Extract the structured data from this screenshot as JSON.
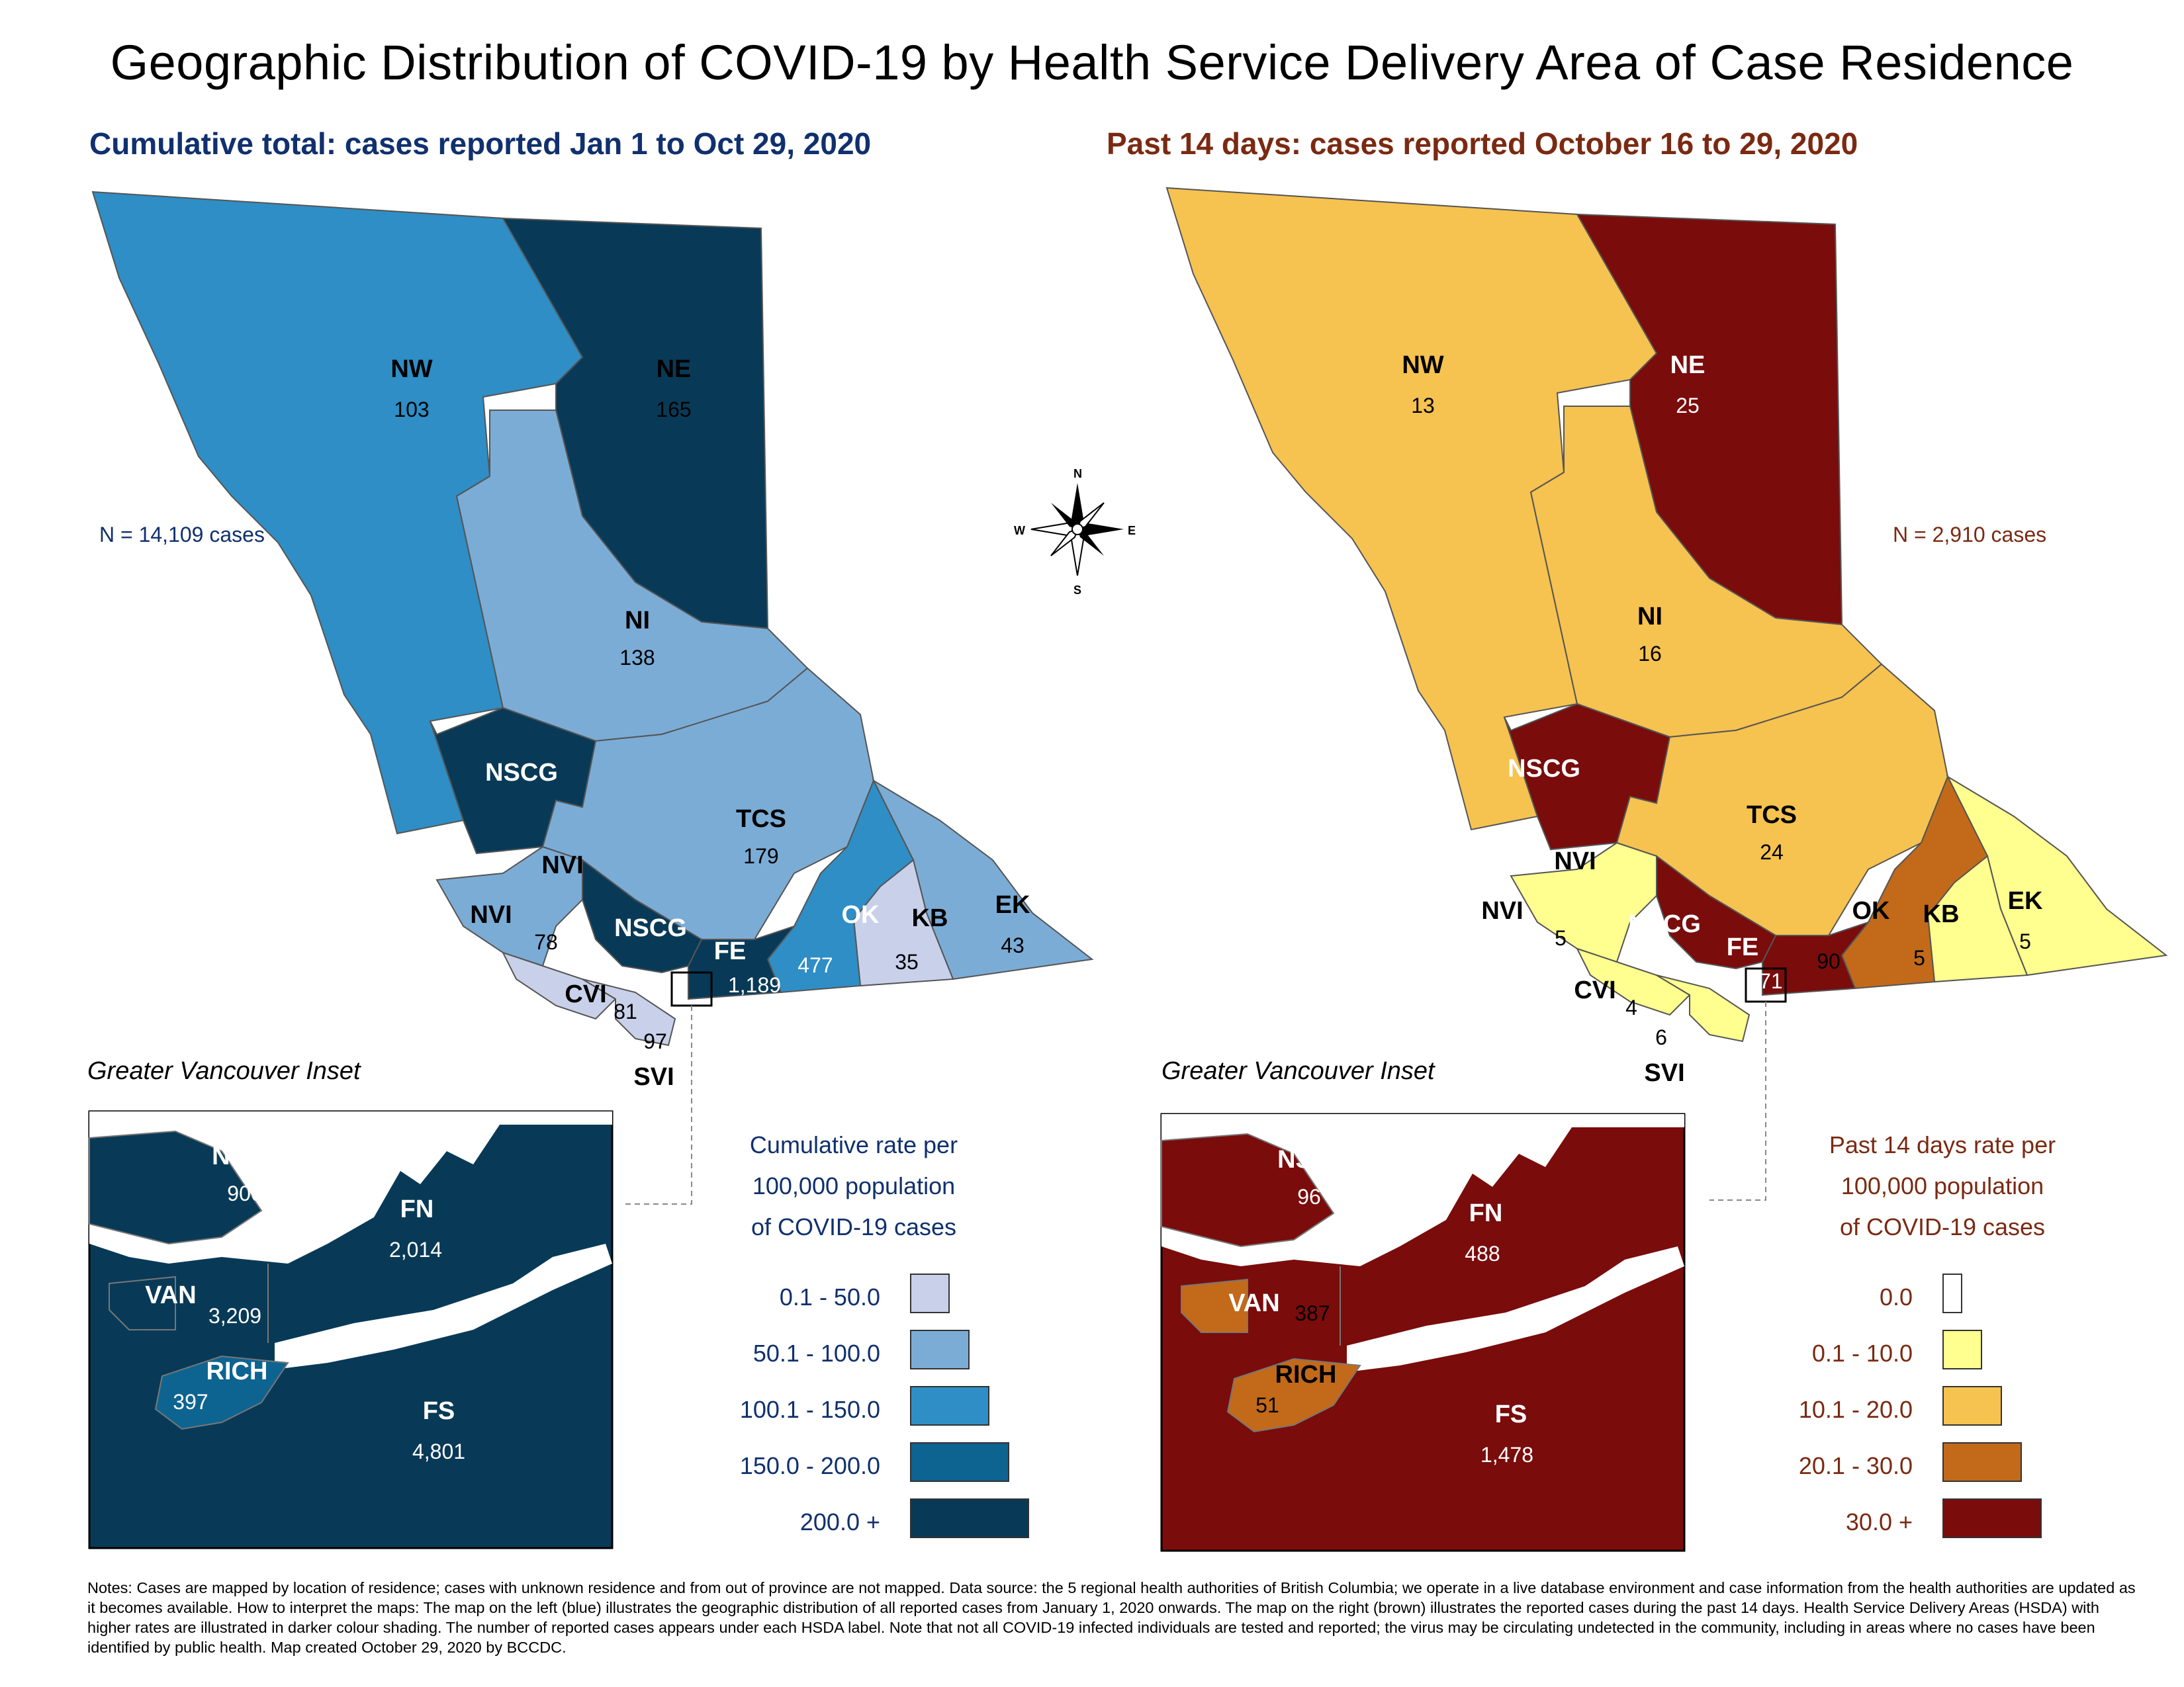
{
  "title": "Geographic Distribution of COVID-19 by Health Service Delivery Area of Case Residence",
  "left": {
    "subtitle": "Cumulative total: cases reported Jan 1 to Oct 29, 2020",
    "n_cases": "N = 14,109 cases",
    "regions": {
      "NW": {
        "label": "NW",
        "value": "103"
      },
      "NE": {
        "label": "NE",
        "value": "165"
      },
      "NI": {
        "label": "NI",
        "value": "138"
      },
      "NSCG": {
        "label": "NSCG",
        "value": ""
      },
      "TCS": {
        "label": "TCS",
        "value": "179"
      },
      "NVI": {
        "label": "NVI",
        "value": "78"
      },
      "NSCG2": {
        "label": "NSCG",
        "value": ""
      },
      "FE": {
        "label": "FE",
        "value": "1,189"
      },
      "OK": {
        "label": "OK",
        "value": "477"
      },
      "KB": {
        "label": "KB",
        "value": "35"
      },
      "EK": {
        "label": "EK",
        "value": "43"
      },
      "CVI": {
        "label": "CVI",
        "value": "81"
      },
      "SVI": {
        "label": "SVI",
        "value": "97"
      }
    },
    "inset_title": "Greater Vancouver Inset",
    "inset": {
      "NSCG": {
        "label": "NSCG",
        "value": "906"
      },
      "FN": {
        "label": "FN",
        "value": "2,014"
      },
      "VAN": {
        "label": "VAN",
        "value": "3,209"
      },
      "RICH": {
        "label": "RICH",
        "value": "397"
      },
      "FS": {
        "label": "FS",
        "value": "4,801"
      }
    },
    "legend_title": "Cumulative rate per 100,000 population of COVID-19 cases",
    "legend_title_lines": [
      "Cumulative rate per",
      "100,000 population",
      "of COVID-19 cases"
    ],
    "legend": [
      {
        "label": "0.1 - 50.0",
        "color": "#c9d1ea"
      },
      {
        "label": "50.1 - 100.0",
        "color": "#7bacd6"
      },
      {
        "label": "100.1 - 150.0",
        "color": "#2e8ec5"
      },
      {
        "label": "150.0 - 200.0",
        "color": "#0e6490"
      },
      {
        "label": "200.0 +",
        "color": "#083a57"
      }
    ]
  },
  "right": {
    "subtitle": "Past 14 days: cases reported October 16 to 29, 2020",
    "n_cases": "N = 2,910 cases",
    "regions": {
      "NW": {
        "label": "NW",
        "value": "13"
      },
      "NE": {
        "label": "NE",
        "value": "25"
      },
      "NI": {
        "label": "NI",
        "value": "16"
      },
      "NSCG": {
        "label": "NSCG",
        "value": ""
      },
      "TCS": {
        "label": "TCS",
        "value": "24"
      },
      "NVI": {
        "label": "NVI",
        "value": "5"
      },
      "NSCG2": {
        "label": "NSCG",
        "value": ""
      },
      "FE": {
        "label": "FE",
        "value": "171"
      },
      "OK": {
        "label": "OK",
        "value": "90"
      },
      "KB": {
        "label": "KB",
        "value": "5"
      },
      "EK": {
        "label": "EK",
        "value": "5"
      },
      "CVI": {
        "label": "CVI",
        "value": "4"
      },
      "SVI": {
        "label": "SVI",
        "value": "6"
      }
    },
    "inset_title": "Greater Vancouver Inset",
    "inset": {
      "NSCG": {
        "label": "NSCG",
        "value": "96"
      },
      "FN": {
        "label": "FN",
        "value": "488"
      },
      "VAN": {
        "label": "VAN",
        "value": "387"
      },
      "RICH": {
        "label": "RICH",
        "value": "51"
      },
      "FS": {
        "label": "FS",
        "value": "1,478"
      }
    },
    "legend_title": "Past 14 days rate per 100,000 population of COVID-19 cases",
    "legend_title_lines": [
      "Past 14 days rate per",
      "100,000 population",
      "of COVID-19 cases"
    ],
    "legend": [
      {
        "label": "0.0",
        "color": "#ffffff"
      },
      {
        "label": "0.1 - 10.0",
        "color": "#ffff8f"
      },
      {
        "label": "10.1 - 20.0",
        "color": "#f6c250"
      },
      {
        "label": "20.1 - 30.0",
        "color": "#c26a1a"
      },
      {
        "label": "30.0 +",
        "color": "#7a0c0c"
      }
    ]
  },
  "compass": {
    "N": "N",
    "S": "S",
    "E": "E",
    "W": "W",
    "icon": "compass-rose-icon"
  },
  "notes": "Notes: Cases are mapped by location of residence; cases with unknown residence and from out of province are not mapped. Data source: the 5 regional health authorities of British Columbia; we operate in a live database environment and case information from the health authorities are updated as it becomes available. How to interpret the maps: The map on the left (blue) illustrates the geographic distribution of all reported cases from January 1, 2020 onwards. The map on the right (brown) illustrates the reported cases during the past 14 days. Health Service Delivery Areas (HSDA) with higher rates are illustrated in darker colour shading. The number of reported cases appears under each HSDA label. Note that not all COVID-19 infected individuals are tested and reported; the virus may be circulating undetected in the community, including in areas where no cases have been identified by public health. Map created October 29, 2020 by BCCDC."
}
